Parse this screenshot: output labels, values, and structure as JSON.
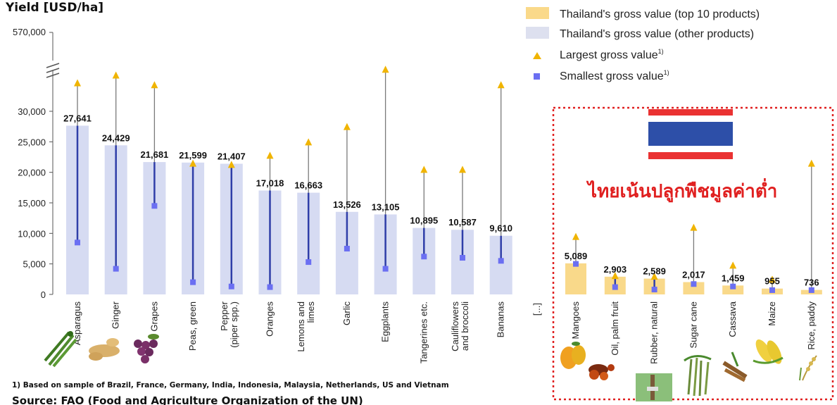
{
  "chart_data": {
    "type": "bar",
    "ylabel": "Yield [USD/ha]",
    "y_break_top_label": "570,000",
    "yticks": [
      "0",
      "5,000",
      "10,000",
      "15,000",
      "20,000",
      "25,000",
      "30,000"
    ],
    "ylim": [
      0,
      30000
    ],
    "ellipsis_label": "[...]",
    "categories": [
      {
        "lines": [
          "Asparagus"
        ],
        "value": 27641,
        "label": "27,641",
        "min": 8500,
        "max": 35000,
        "group": "other"
      },
      {
        "lines": [
          "Ginger"
        ],
        "value": 24429,
        "label": "24,429",
        "min": 4200,
        "max": 37000,
        "group": "other"
      },
      {
        "lines": [
          "Grapes"
        ],
        "value": 21681,
        "label": "21,681",
        "min": 14500,
        "max": 34500,
        "group": "other"
      },
      {
        "lines": [
          "Peas, green"
        ],
        "value": 21599,
        "label": "21,599",
        "min": 2000,
        "max": 21500,
        "group": "other"
      },
      {
        "lines": [
          "Pepper",
          "(piper spp.)"
        ],
        "value": 21407,
        "label": "21,407",
        "min": 1300,
        "max": 21300,
        "group": "other"
      },
      {
        "lines": [
          "Oranges"
        ],
        "value": 17018,
        "label": "17,018",
        "min": 1200,
        "max": 22800,
        "group": "other"
      },
      {
        "lines": [
          "Lemons and",
          "limes"
        ],
        "value": 16663,
        "label": "16,663",
        "min": 5300,
        "max": 25000,
        "group": "other"
      },
      {
        "lines": [
          "Garlic"
        ],
        "value": 13526,
        "label": "13,526",
        "min": 7500,
        "max": 27500,
        "group": "other"
      },
      {
        "lines": [
          "Eggplants"
        ],
        "value": 13105,
        "label": "13,105",
        "min": 4200,
        "max": 38500,
        "group": "other"
      },
      {
        "lines": [
          "Tangerines etc."
        ],
        "value": 10895,
        "label": "10,895",
        "min": 6200,
        "max": 20500,
        "group": "other"
      },
      {
        "lines": [
          "Cauliflowers",
          "and broccoli"
        ],
        "value": 10587,
        "label": "10,587",
        "min": 6000,
        "max": 20500,
        "group": "other"
      },
      {
        "lines": [
          "Bananas"
        ],
        "value": 9610,
        "label": "9,610",
        "min": 5500,
        "max": 34500,
        "group": "other"
      },
      {
        "lines": [
          "Mangoes"
        ],
        "value": 5089,
        "label": "5,089",
        "min": 5000,
        "max": 9500,
        "group": "top10"
      },
      {
        "lines": [
          "Oil, palm fruit"
        ],
        "value": 2903,
        "label": "2,903",
        "min": 1200,
        "max": 3100,
        "group": "top10"
      },
      {
        "lines": [
          "Rubber, natural"
        ],
        "value": 2589,
        "label": "2,589",
        "min": 800,
        "max": 3000,
        "group": "top10"
      },
      {
        "lines": [
          "Sugar cane"
        ],
        "value": 2017,
        "label": "2,017",
        "min": 1700,
        "max": 11000,
        "group": "top10"
      },
      {
        "lines": [
          "Cassava"
        ],
        "value": 1459,
        "label": "1,459",
        "min": 1300,
        "max": 4800,
        "group": "top10"
      },
      {
        "lines": [
          "Maize"
        ],
        "value": 955,
        "label": "955",
        "min": 700,
        "max": 2500,
        "group": "top10"
      },
      {
        "lines": [
          "Rice, paddy"
        ],
        "value": 736,
        "label": "736",
        "min": 700,
        "max": 21500,
        "group": "top10"
      }
    ],
    "legend": [
      {
        "label": "Thailand's gross value (top 10 products)",
        "marker": "rect",
        "color": "#fad98a"
      },
      {
        "label": "Thailand's gross value (other products)",
        "marker": "rect",
        "color": "#dde0ef"
      },
      {
        "label": "Largest gross value",
        "sup": "1)",
        "marker": "triangle",
        "color": "#f0b400"
      },
      {
        "label": "Smallest gross value",
        "sup": "1)",
        "marker": "square",
        "color": "#6b6ff2"
      }
    ],
    "annotation_thai": "ไทยเน้นปลูกพืชมูลค่าต่ำ",
    "footnote": "1) Based on sample of Brazil, France, Germany, India, Indonesia, Malaysia, Netherlands, US and Vietnam",
    "source": "Source: FAO (Food and Agriculture Organization of the UN)"
  },
  "colors": {
    "bar_other": "#d6dbf2",
    "bar_top10": "#f9d98a",
    "stem_low": "#2f3ea8",
    "stem_high": "#7a7a7a",
    "max_marker": "#f0b400",
    "min_marker": "#6b6ff2",
    "highlight_border": "#e02020",
    "flag_red": "#ea3232",
    "flag_white": "#ffffff",
    "flag_blue": "#2d4fa8"
  },
  "icons": [
    "asparagus-icon",
    "ginger-icon",
    "grapes-icon",
    "mango-icon",
    "palm-fruit-icon",
    "rubber-tree-icon",
    "sugar-cane-icon",
    "cassava-icon",
    "maize-icon",
    "rice-icon",
    "thai-flag-icon"
  ]
}
